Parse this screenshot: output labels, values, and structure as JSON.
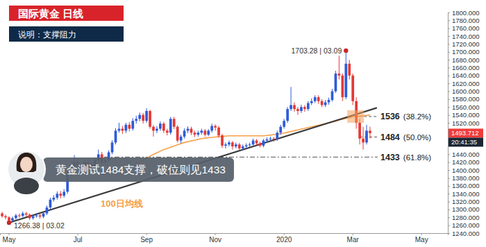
{
  "chart_data": {
    "type": "candlestick",
    "title": "国际黄金 日线",
    "subtitle": "说明：支撑阻力",
    "annotation": "黄金测试1484支撑，破位则见1433",
    "categories": [
      null,
      null,
      "May",
      null,
      null,
      null,
      null,
      null,
      null,
      null,
      null,
      null,
      null,
      null,
      null,
      null,
      null,
      null,
      null,
      null,
      null,
      null,
      "Jul",
      null,
      null,
      null,
      null,
      null,
      null,
      null,
      null,
      null,
      null,
      null,
      null,
      null,
      null,
      null,
      null,
      null,
      null,
      null,
      "Sep",
      null,
      null,
      null,
      null,
      null,
      null,
      null,
      null,
      null,
      null,
      null,
      null,
      null,
      null,
      null,
      null,
      null,
      null,
      null,
      "Nov",
      null,
      null,
      null,
      null,
      null,
      null,
      null,
      null,
      null,
      null,
      null,
      null,
      null,
      null,
      null,
      null,
      null,
      null,
      null,
      "2020",
      null,
      null,
      null,
      null,
      null,
      null,
      null,
      null,
      null,
      null,
      null,
      null,
      null,
      null,
      null,
      null,
      null,
      null,
      null,
      "Mar",
      null,
      null,
      null,
      null,
      null,
      null,
      null,
      null,
      null,
      null,
      null,
      null,
      null,
      null,
      null,
      null,
      null,
      null,
      null,
      "May",
      null,
      null,
      null,
      null,
      null,
      null,
      null
    ],
    "open": [
      1290,
      1283,
      1280,
      1272,
      1278,
      1285,
      1284,
      1290,
      1287,
      1278,
      1283,
      1285,
      1282,
      1290,
      1305,
      1325,
      1330,
      1340,
      1335,
      1345,
      1390,
      1405,
      1420,
      1410,
      1400,
      1420,
      1415,
      1410,
      1425,
      1440,
      1420,
      1425,
      1445,
      1470,
      1500,
      1505,
      1500,
      1515,
      1505,
      1525,
      1530,
      1540,
      1525,
      1550,
      1510,
      1500,
      1505,
      1518,
      1500,
      1495,
      1530,
      1510,
      1475,
      1485,
      1500,
      1505,
      1495,
      1490,
      1495,
      1500,
      1490,
      1500,
      1512,
      1508,
      1488,
      1462,
      1465,
      1470,
      1460,
      1465,
      1455,
      1460,
      1463,
      1465,
      1475,
      1468,
      1462,
      1475,
      1478,
      1480,
      1478,
      1495,
      1510,
      1525,
      1555,
      1565,
      1555,
      1550,
      1560,
      1555,
      1570,
      1575,
      1585,
      1575,
      1565,
      1572,
      1578,
      1600,
      1645,
      1640,
      1585,
      1670,
      1640,
      1575,
      1520,
      1480,
      1470,
      1500,
      null,
      null,
      null,
      null,
      null,
      null,
      null,
      null,
      null,
      null,
      null,
      null,
      null,
      null,
      null,
      null,
      null,
      null,
      null,
      null,
      null,
      null
    ],
    "high": [
      1294,
      1287,
      1283,
      1282,
      1289,
      1290,
      1295,
      1294,
      1290,
      1287,
      1290,
      1290,
      1294,
      1310,
      1330,
      1336,
      1346,
      1347,
      1352,
      1397,
      1412,
      1438,
      1428,
      1415,
      1426,
      1427,
      1420,
      1432,
      1452,
      1446,
      1431,
      1450,
      1476,
      1506,
      1520,
      1512,
      1520,
      1522,
      1532,
      1538,
      1546,
      1545,
      1557,
      1553,
      1514,
      1512,
      1524,
      1522,
      1505,
      1535,
      1535,
      1514,
      1490,
      1506,
      1511,
      1510,
      1500,
      1500,
      1505,
      1504,
      1504,
      1518,
      1516,
      1512,
      1492,
      1470,
      1475,
      1474,
      1470,
      1469,
      1465,
      1468,
      1470,
      1480,
      1479,
      1472,
      1479,
      1483,
      1485,
      1484,
      1500,
      1515,
      1530,
      1560,
      1611,
      1572,
      1560,
      1566,
      1565,
      1575,
      1582,
      1590,
      1590,
      1580,
      1578,
      1584,
      1606,
      1652,
      1690,
      1645,
      1703.28,
      1680,
      1645,
      1585,
      1530,
      1510,
      1515,
      1510,
      null,
      null,
      null,
      null,
      null,
      null,
      null,
      null,
      null,
      null,
      null,
      null,
      null,
      null,
      null,
      null,
      null,
      null,
      null,
      null,
      null,
      null
    ],
    "low": [
      1279,
      1275,
      1266.38,
      1268,
      1274,
      1279,
      1280,
      1282,
      1273,
      1274,
      1279,
      1277,
      1278,
      1286,
      1300,
      1320,
      1325,
      1328,
      1330,
      1340,
      1384,
      1398,
      1402,
      1392,
      1395,
      1408,
      1402,
      1405,
      1420,
      1414,
      1412,
      1420,
      1440,
      1465,
      1495,
      1492,
      1494,
      1498,
      1500,
      1518,
      1524,
      1518,
      1520,
      1505,
      1485,
      1494,
      1500,
      1494,
      1488,
      1490,
      1504,
      1470,
      1468,
      1480,
      1494,
      1489,
      1484,
      1485,
      1490,
      1485,
      1486,
      1495,
      1500,
      1482,
      1456,
      1455,
      1460,
      1452,
      1455,
      1450,
      1450,
      1455,
      1458,
      1460,
      1463,
      1458,
      1458,
      1470,
      1473,
      1472,
      1474,
      1490,
      1505,
      1520,
      1550,
      1548,
      1540,
      1545,
      1548,
      1550,
      1565,
      1570,
      1568,
      1560,
      1560,
      1566,
      1574,
      1596,
      1630,
      1575,
      1580,
      1630,
      1565,
      1505,
      1465,
      1452,
      1465,
      1480,
      null,
      null,
      null,
      null,
      null,
      null,
      null,
      null,
      null,
      null,
      null,
      null,
      null,
      null,
      null,
      null,
      null,
      null,
      null,
      null,
      null,
      null
    ],
    "close": [
      1283,
      1280,
      1272,
      1278,
      1285,
      1284,
      1290,
      1287,
      1278,
      1283,
      1285,
      1282,
      1290,
      1305,
      1325,
      1330,
      1340,
      1335,
      1345,
      1390,
      1405,
      1420,
      1410,
      1400,
      1420,
      1415,
      1410,
      1425,
      1440,
      1420,
      1425,
      1445,
      1470,
      1500,
      1505,
      1500,
      1515,
      1505,
      1525,
      1530,
      1540,
      1525,
      1550,
      1510,
      1500,
      1505,
      1518,
      1500,
      1495,
      1530,
      1510,
      1475,
      1485,
      1500,
      1505,
      1495,
      1490,
      1495,
      1500,
      1490,
      1500,
      1512,
      1508,
      1488,
      1462,
      1465,
      1470,
      1460,
      1465,
      1455,
      1460,
      1463,
      1465,
      1475,
      1468,
      1462,
      1475,
      1478,
      1480,
      1478,
      1495,
      1510,
      1525,
      1555,
      1565,
      1555,
      1550,
      1560,
      1555,
      1570,
      1575,
      1585,
      1575,
      1565,
      1572,
      1578,
      1600,
      1645,
      1640,
      1585,
      1670,
      1640,
      1575,
      1520,
      1480,
      1470,
      1500,
      1493.712,
      null,
      null,
      null,
      null,
      null,
      null,
      null,
      null,
      null,
      null,
      null,
      null,
      null,
      null,
      null,
      null,
      null,
      null,
      null,
      null,
      null,
      null
    ],
    "series": [
      {
        "name": "100日均线",
        "type": "line",
        "color": "#f5a04b",
        "values": [
          null,
          null,
          null,
          null,
          null,
          null,
          null,
          null,
          null,
          null,
          null,
          null,
          null,
          null,
          null,
          null,
          null,
          null,
          null,
          null,
          null,
          null,
          null,
          null,
          null,
          null,
          null,
          null,
          null,
          null,
          null,
          null,
          null,
          null,
          null,
          null,
          1400,
          1405,
          1410,
          1415,
          1420,
          1425,
          1430,
          1435,
          1440,
          1444,
          1448,
          1452,
          1455,
          1458,
          1461,
          1464,
          1467,
          1470,
          1472,
          1474,
          1476,
          1478,
          1480,
          1481,
          1482,
          1483,
          1484,
          1485,
          1486,
          1486,
          1487,
          1487,
          1487,
          1487,
          1487,
          1487,
          1487,
          1487,
          1487,
          1487,
          1487,
          1488,
          1489,
          1490,
          1491,
          1492,
          1494,
          1496,
          1498,
          1500,
          1502,
          1504,
          1506,
          1508,
          1510,
          1512,
          1514,
          1516,
          1518,
          1520,
          1522,
          1524,
          1527,
          1529,
          1531,
          1533,
          1535,
          1536,
          1537,
          1538,
          1539,
          1540,
          null,
          null,
          null,
          null,
          null,
          null,
          null,
          null,
          null,
          null,
          null,
          null,
          null,
          null,
          null,
          null,
          null,
          null,
          null,
          null,
          null,
          null
        ]
      }
    ],
    "trend_line": {
      "x": [
        2,
        109
      ],
      "values": [
        1266.38,
        1558
      ]
    },
    "levels": [
      {
        "value": 1536,
        "ratio": "(38.2%)"
      },
      {
        "value": 1484,
        "ratio": "(50.0%)"
      },
      {
        "value": 1433,
        "ratio": "(61.8%)"
      }
    ],
    "high_marker": {
      "value": 1703.28,
      "label": "1703.28 | 03.09"
    },
    "low_marker": {
      "value": 1266.38,
      "label": "1266.38 | 03.02"
    },
    "last_price": 1493.712,
    "last_time": "20:41:35",
    "ylim": [
      1240,
      1800
    ],
    "yticks": [
      {
        "value": 1800,
        "label": "1800.000"
      },
      {
        "value": 1780,
        "label": "1780.000"
      },
      {
        "value": 1760,
        "label": "1760.000"
      },
      {
        "value": 1740,
        "label": "1740.000"
      },
      {
        "value": 1720,
        "label": "1720.000"
      },
      {
        "value": 1700,
        "label": "1700.000"
      },
      {
        "value": 1680,
        "label": "1680.000"
      },
      {
        "value": 1660,
        "label": "1660.000"
      },
      {
        "value": 1640,
        "label": "1640.000"
      },
      {
        "value": 1620,
        "label": "1620.000"
      },
      {
        "value": 1600,
        "label": "1600.000"
      },
      {
        "value": 1580,
        "label": "1580.000"
      },
      {
        "value": 1560,
        "label": "1560.000"
      },
      {
        "value": 1540,
        "label": "1540.000"
      },
      {
        "value": 1520,
        "label": "1520.000"
      },
      {
        "value": 1440,
        "label": "1440.000"
      },
      {
        "value": 1420,
        "label": "1420.000"
      },
      {
        "value": 1400,
        "label": "1400.000"
      },
      {
        "value": 1380,
        "label": "1380.000"
      },
      {
        "value": 1360,
        "label": "1360.000"
      },
      {
        "value": 1340,
        "label": "1340.000"
      },
      {
        "value": 1320,
        "label": "1320.000"
      },
      {
        "value": 1300,
        "label": "1300.000"
      },
      {
        "value": 1280,
        "label": "1280.000"
      },
      {
        "value": 1260,
        "label": "1260.000"
      },
      {
        "value": 1240,
        "label": "1240.000"
      }
    ],
    "grid": false
  }
}
